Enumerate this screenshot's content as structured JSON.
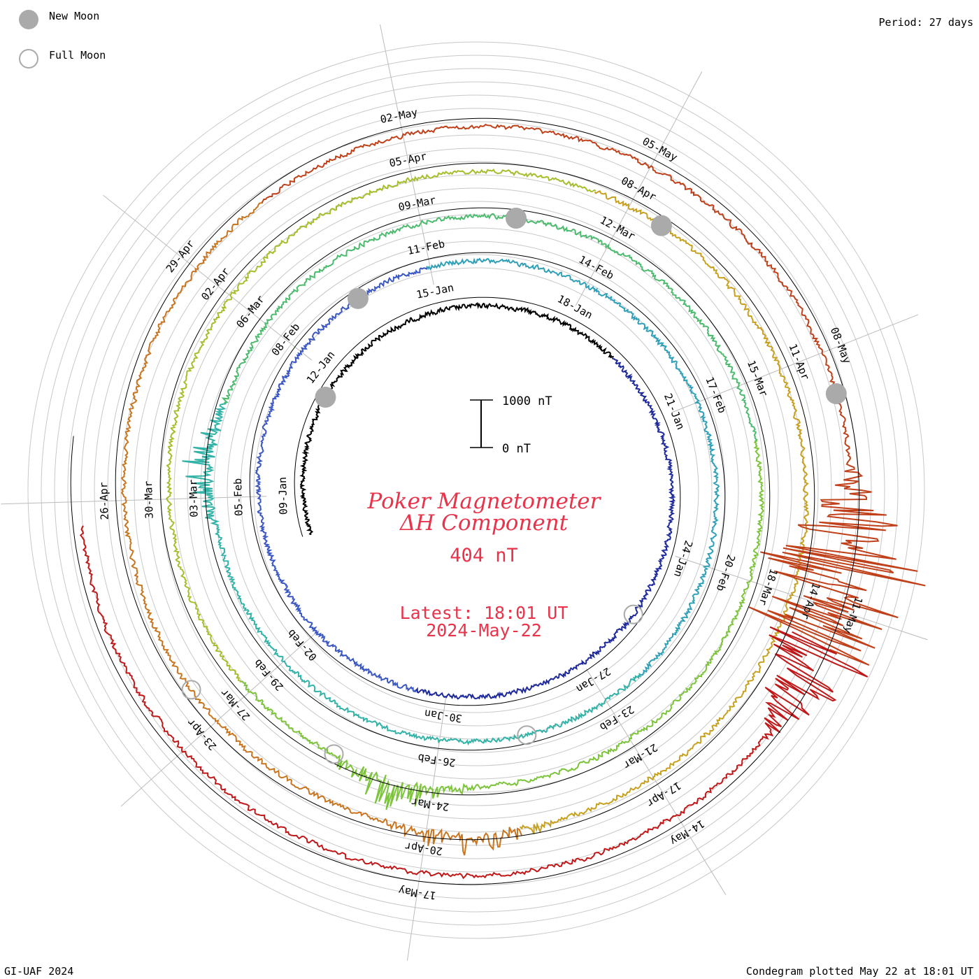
{
  "legend": {
    "new_moon": "New Moon",
    "full_moon": "Full Moon",
    "new_moon_color": "#aaaaaa",
    "full_moon_color": "#aaaaaa"
  },
  "period": "Period: 27 days",
  "footer": {
    "left": "GI-UAF 2024",
    "right": "Condegram plotted May 22 at 18:01 UT"
  },
  "center": {
    "title_line1": "Poker Magnetometer",
    "title_line2": "ΔH Component",
    "value": "404 nT",
    "latest": "Latest: 18:01 UT",
    "date": "2024-May-22",
    "scale_top": "1000 nT",
    "scale_bottom": "0 nT",
    "text_color": "#e8334a"
  },
  "chart_data": {
    "type": "line",
    "title": "Poker Magnetometer ΔH Component",
    "period_days": 27,
    "start_date": "2024-01-08",
    "end_date": "2024-05-22",
    "cycles": [
      {
        "ticks": [
          "09-Jan",
          "12-Jan",
          "15-Jan",
          "18-Jan",
          "21-Jan",
          "24-Jan",
          "27-Jan",
          "30-Jan",
          "02-Feb"
        ],
        "color": "#000000"
      },
      {
        "ticks": [
          "05-Feb",
          "08-Feb",
          "11-Feb",
          "14-Feb",
          "17-Feb",
          "20-Feb",
          "23-Feb",
          "26-Feb",
          "29-Feb"
        ],
        "color": "#1e2a9c"
      },
      {
        "ticks": [
          "03-Mar",
          "06-Mar",
          "09-Mar",
          "12-Mar",
          "15-Mar",
          "18-Mar",
          "21-Mar",
          "24-Mar",
          "27-Mar"
        ],
        "color": "#33b3a8"
      },
      {
        "ticks": [
          "30-Mar",
          "02-Apr",
          "05-Apr",
          "08-Apr",
          "11-Apr",
          "14-Apr",
          "17-Apr",
          "20-Apr",
          "23-Apr"
        ],
        "color": "#7cc43a"
      },
      {
        "ticks": [
          "26-Apr",
          "29-Apr",
          "02-May",
          "05-May",
          "08-May",
          "11-May",
          "14-May",
          "17-May"
        ],
        "color": "#c8a020"
      }
    ],
    "series_color_sequence": [
      "#000000",
      "#1e2a9c",
      "#3a57c2",
      "#2fa0b8",
      "#33b3a8",
      "#4cbb6e",
      "#7cc43a",
      "#a6be2b",
      "#c8a020",
      "#c9751f",
      "#c0401a",
      "#c01818"
    ],
    "new_moons": [
      "2024-01-11",
      "2024-02-09",
      "2024-03-10",
      "2024-04-08",
      "2024-05-08"
    ],
    "full_moons": [
      "2024-01-25",
      "2024-02-24",
      "2024-03-25",
      "2024-04-23"
    ],
    "scale_nT": [
      0,
      1000
    ],
    "current_value_nT": 404,
    "disturbances": [
      {
        "date": "2024-03-03",
        "min_nT": -700
      },
      {
        "date": "2024-03-24",
        "min_nT": -800
      },
      {
        "date": "2024-04-19",
        "min_nT": -600
      },
      {
        "date": "2024-05-10",
        "min_nT": -2000,
        "max_nT": 1800
      },
      {
        "date": "2024-05-11",
        "min_nT": -1500,
        "max_nT": 1400
      }
    ]
  }
}
